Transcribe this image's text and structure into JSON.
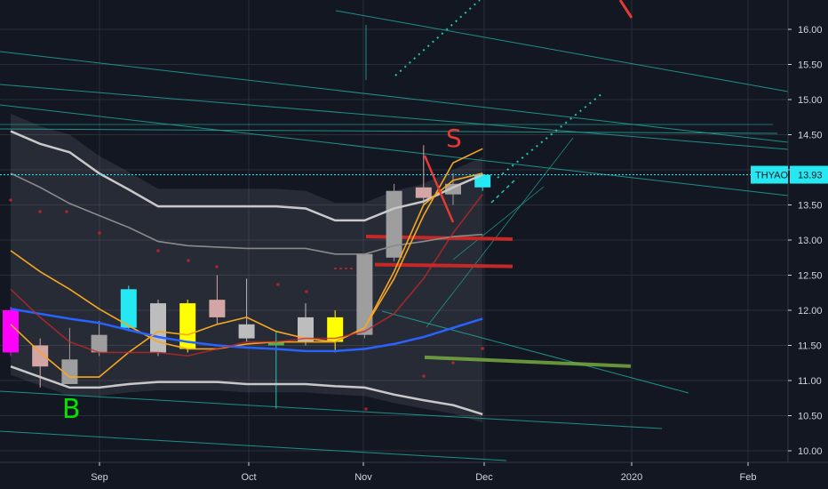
{
  "chart_data": {
    "type": "candlestick",
    "symbol": "THYAO",
    "last_price": "13.93",
    "ylim": [
      9.95,
      16.35
    ],
    "y_ticks": [
      "16.00",
      "15.50",
      "15.00",
      "14.50",
      "14.00",
      "13.50",
      "13.00",
      "12.50",
      "12.00",
      "11.50",
      "11.00",
      "10.50",
      "10.00"
    ],
    "x_ticks": [
      "Sep",
      "Oct",
      "Nov",
      "Dec",
      "2020",
      "Feb"
    ],
    "grid": true,
    "annotations": [
      {
        "text": "B",
        "color": "#00e600"
      },
      {
        "text": "S",
        "color": "#e53935"
      }
    ],
    "candles": [
      {
        "week": 0,
        "open": 11.4,
        "high": 12.05,
        "low": 11.35,
        "close": 12.0,
        "color": "#ff00ff"
      },
      {
        "week": 1,
        "open": 11.5,
        "high": 11.6,
        "low": 10.9,
        "close": 11.2,
        "color": "#d4a5a5"
      },
      {
        "week": 2,
        "open": 11.3,
        "high": 11.75,
        "low": 10.95,
        "close": 10.95,
        "color": "#9e9e9e"
      },
      {
        "week": 3,
        "open": 11.4,
        "high": 11.85,
        "low": 11.35,
        "close": 11.65,
        "color": "#9e9e9e"
      },
      {
        "week": 4,
        "open": 11.75,
        "high": 12.35,
        "low": 11.7,
        "close": 12.3,
        "color": "#26e8f2"
      },
      {
        "week": 5,
        "open": 12.1,
        "high": 12.15,
        "low": 11.35,
        "close": 11.4,
        "color": "#bdbdbd"
      },
      {
        "week": 6,
        "open": 11.45,
        "high": 12.15,
        "low": 11.4,
        "close": 12.1,
        "color": "#ffff00"
      },
      {
        "week": 7,
        "open": 11.9,
        "high": 12.5,
        "low": 11.8,
        "close": 12.15,
        "color": "#d4a5a5"
      },
      {
        "week": 8,
        "open": 11.8,
        "high": 12.45,
        "low": 11.55,
        "close": 11.6,
        "color": "#bdbdbd"
      },
      {
        "week": 9,
        "open": 11.55,
        "high": 11.7,
        "low": 10.6,
        "close": 11.5,
        "color": "#4caf50"
      },
      {
        "week": 10,
        "open": 11.55,
        "high": 12.1,
        "low": 11.5,
        "close": 11.9,
        "color": "#bdbdbd"
      },
      {
        "week": 11,
        "open": 11.9,
        "high": 12.0,
        "low": 11.4,
        "close": 11.55,
        "color": "#ffff00"
      },
      {
        "week": 12,
        "open": 11.65,
        "high": 12.8,
        "low": 11.6,
        "close": 12.8,
        "color": "#9e9e9e"
      },
      {
        "week": 13,
        "open": 12.75,
        "high": 13.8,
        "low": 12.7,
        "close": 13.7,
        "color": "#9e9e9e"
      },
      {
        "week": 14,
        "open": 13.6,
        "high": 14.35,
        "low": 13.5,
        "close": 13.75,
        "color": "#d4a5a5"
      },
      {
        "week": 15,
        "open": 13.65,
        "high": 13.95,
        "low": 13.5,
        "close": 13.8,
        "color": "#9e9e9e"
      },
      {
        "week": 16,
        "open": 13.75,
        "high": 13.95,
        "low": 13.7,
        "close": 13.93,
        "color": "#26e8f2"
      }
    ],
    "series": [
      {
        "role": "bollinger_upper",
        "color": "#c8c8c8",
        "values": [
          14.55,
          14.37,
          14.25,
          13.95,
          13.72,
          13.48,
          13.48,
          13.48,
          13.48,
          13.48,
          13.45,
          13.28,
          13.28,
          13.45,
          13.55,
          13.75,
          13.93
        ]
      },
      {
        "role": "bollinger_mid",
        "color": "#8a8a8a",
        "values": [
          13.95,
          13.75,
          13.52,
          13.35,
          13.18,
          12.98,
          12.92,
          12.9,
          12.88,
          12.88,
          12.88,
          12.8,
          12.8,
          12.92,
          12.98,
          13.05,
          13.08
        ]
      },
      {
        "role": "bollinger_lower",
        "color": "#c8c8c8",
        "values": [
          11.2,
          11.05,
          10.9,
          10.9,
          10.95,
          10.98,
          10.98,
          10.98,
          10.95,
          10.95,
          10.95,
          10.92,
          10.9,
          10.8,
          10.72,
          10.65,
          10.52
        ]
      },
      {
        "role": "ema_fast",
        "color": "#f5a623",
        "values": [
          12.85,
          12.55,
          12.3,
          12.02,
          11.78,
          11.55,
          11.45,
          11.45,
          11.52,
          11.55,
          11.55,
          11.55,
          11.75,
          12.45,
          13.35,
          14.1,
          14.3
        ]
      },
      {
        "role": "ema_slow",
        "color": "#2962ff",
        "values": [
          12.02,
          11.95,
          11.88,
          11.82,
          11.72,
          11.62,
          11.55,
          11.5,
          11.47,
          11.45,
          11.42,
          11.42,
          11.45,
          11.52,
          11.62,
          11.75,
          11.88
        ]
      },
      {
        "role": "wma",
        "color": "#f5a623",
        "values": [
          11.8,
          11.4,
          11.05,
          11.05,
          11.4,
          11.7,
          11.65,
          11.8,
          11.9,
          11.7,
          11.6,
          11.55,
          11.75,
          12.55,
          13.5,
          13.85,
          13.95
        ]
      },
      {
        "role": "sma",
        "color": "#c62828",
        "values": [
          12.3,
          11.9,
          11.55,
          11.4,
          11.4,
          11.4,
          11.35,
          11.45,
          11.55,
          11.55,
          11.6,
          11.6,
          11.7,
          11.95,
          12.45,
          13.1,
          13.65
        ]
      }
    ],
    "levels": [
      {
        "price": 13.05,
        "color": "#c62828"
      },
      {
        "price": 12.65,
        "color": "#c62828"
      },
      {
        "price": 11.28,
        "color": "#7cb342"
      }
    ]
  }
}
